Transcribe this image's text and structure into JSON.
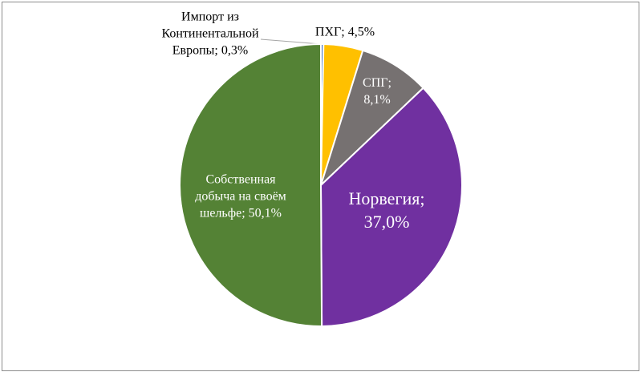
{
  "chart_data": {
    "type": "pie",
    "values": [
      0.3,
      4.5,
      8.1,
      37.0,
      50.1
    ],
    "value_labels": [
      "Импорт из\nКонтинентальной\nЕвропы; 0,3%",
      "ПХГ; 4,5%",
      "СПГ;\n8,1%",
      "Норвегия;\n37,0%",
      "Собственная\nдобыча на своём\nшельфе; 50,1%"
    ],
    "colors": [
      "#4472c4",
      "#ffc000",
      "#767171",
      "#7030a0",
      "#548235"
    ]
  }
}
